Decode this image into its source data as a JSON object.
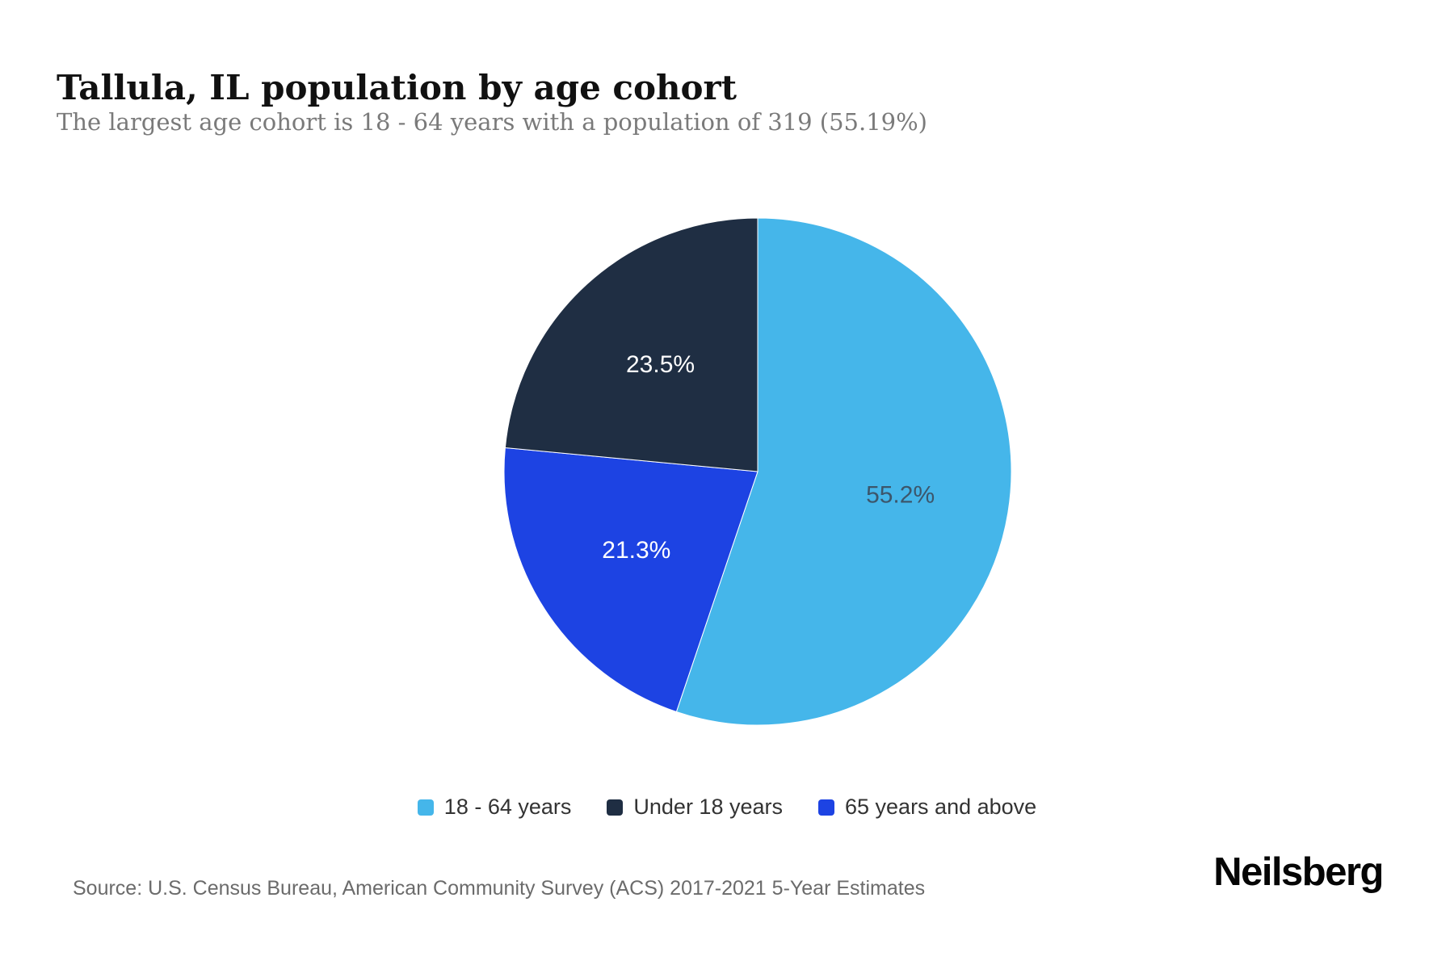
{
  "header": {
    "title": "Tallula, IL population by age cohort",
    "subtitle": "The largest age cohort is 18 - 64 years with a population of 319 (55.19%)"
  },
  "chart_data": {
    "type": "pie",
    "title": "Tallula, IL population by age cohort",
    "start_angle_deg": 0,
    "direction": "clockwise",
    "slices": [
      {
        "label": "18 - 64 years",
        "value": 55.19,
        "display": "55.2%",
        "color": "#45b6ea",
        "label_color": "#3c566b"
      },
      {
        "label": "65 years and above",
        "value": 21.31,
        "display": "21.3%",
        "color": "#1d43e3",
        "label_color": "#ffffff"
      },
      {
        "label": "Under 18 years",
        "value": 23.5,
        "display": "23.5%",
        "color": "#1f2e43",
        "label_color": "#ffffff"
      }
    ],
    "legend_order": [
      0,
      2,
      1
    ],
    "legend_position": "bottom",
    "largest_cohort": {
      "label": "18 - 64 years",
      "population": 319,
      "percent": "55.19%"
    }
  },
  "footer": {
    "source": "Source: U.S. Census Bureau, American Community Survey (ACS) 2017-2021 5-Year Estimates",
    "brand": "Neilsberg"
  },
  "colors": {
    "background": "#ffffff",
    "title_text": "#111111",
    "subtitle_text": "#7a7a7a",
    "legend_text": "#333333",
    "source_text": "#6b6b6b",
    "brand_text": "#050505",
    "slice_border": "#ffffff"
  }
}
